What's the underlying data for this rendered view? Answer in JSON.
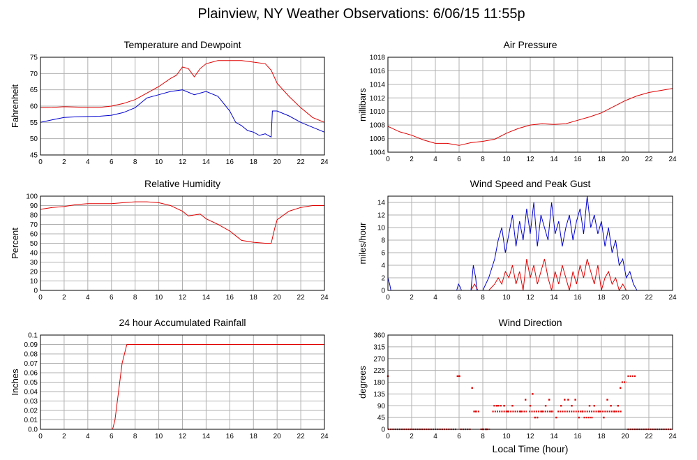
{
  "page": {
    "title": "Plainview, NY Weather Observations: 6/06/15 11:55p"
  },
  "shared_x": {
    "label": "Local Time (hour)",
    "range": [
      0,
      24
    ],
    "ticks": [
      0,
      2,
      4,
      6,
      8,
      10,
      12,
      14,
      16,
      18,
      20,
      22,
      24
    ]
  },
  "colors": {
    "red": "#e00000",
    "blue": "#0000d0",
    "grid": "#b0b0b0"
  },
  "chart_data": [
    {
      "type": "line",
      "title": "Temperature and Dewpoint",
      "ylabel": "Fahrenheit",
      "xlabel": "",
      "ylim": [
        45,
        75
      ],
      "yticks": [
        45,
        50,
        55,
        60,
        65,
        70,
        75
      ],
      "grid": true,
      "series": [
        {
          "color": "red",
          "x": [
            0,
            1,
            2,
            3,
            4,
            5,
            6,
            7,
            8,
            9,
            10,
            11,
            11.5,
            12,
            12.5,
            13,
            13.5,
            14,
            14.5,
            15,
            16,
            17,
            18,
            19,
            19.5,
            20,
            21,
            22,
            23,
            24
          ],
          "y": [
            59.5,
            59.6,
            59.8,
            59.7,
            59.6,
            59.6,
            60.0,
            60.8,
            62.0,
            64.0,
            66.0,
            68.5,
            69.5,
            72.0,
            71.5,
            69.0,
            71.5,
            73.0,
            73.5,
            74.0,
            74.0,
            74.0,
            73.5,
            73.0,
            71.0,
            67.0,
            63.0,
            59.5,
            56.5,
            55.0
          ]
        },
        {
          "color": "blue",
          "x": [
            0,
            1,
            2,
            3,
            4,
            5,
            6,
            7,
            8,
            9,
            10,
            11,
            12,
            13,
            14,
            15,
            16,
            16.5,
            17,
            17.5,
            18,
            18.5,
            19,
            19.5,
            19.6,
            20,
            21,
            22,
            23,
            24
          ],
          "y": [
            55.0,
            55.8,
            56.5,
            56.7,
            56.8,
            56.9,
            57.2,
            58.0,
            59.5,
            62.5,
            63.5,
            64.5,
            65.0,
            63.5,
            64.5,
            63.0,
            58.5,
            55.0,
            54.0,
            52.5,
            52.0,
            51.0,
            51.5,
            50.5,
            58.5,
            58.5,
            57.0,
            55.0,
            53.5,
            52.0
          ]
        }
      ]
    },
    {
      "type": "line",
      "title": "Air Pressure",
      "ylabel": "millibars",
      "xlabel": "",
      "ylim": [
        1004,
        1018
      ],
      "yticks": [
        1004,
        1006,
        1008,
        1010,
        1012,
        1014,
        1016,
        1018
      ],
      "grid": true,
      "series": [
        {
          "color": "red",
          "x": [
            0,
            1,
            2,
            3,
            4,
            5,
            6,
            7,
            8,
            9,
            10,
            11,
            12,
            13,
            14,
            15,
            16,
            17,
            18,
            19,
            20,
            21,
            22,
            23,
            24
          ],
          "y": [
            1007.8,
            1007.0,
            1006.5,
            1005.8,
            1005.3,
            1005.3,
            1005.0,
            1005.4,
            1005.6,
            1005.9,
            1006.8,
            1007.5,
            1008.0,
            1008.2,
            1008.1,
            1008.2,
            1008.7,
            1009.2,
            1009.8,
            1010.7,
            1011.6,
            1012.3,
            1012.8,
            1013.1,
            1013.4
          ]
        }
      ]
    },
    {
      "type": "line",
      "title": "Relative Humidity",
      "ylabel": "Percent",
      "xlabel": "",
      "ylim": [
        0,
        100
      ],
      "yticks": [
        0,
        10,
        20,
        30,
        40,
        50,
        60,
        70,
        80,
        90,
        100
      ],
      "grid": true,
      "series": [
        {
          "color": "red",
          "x": [
            0,
            1,
            2,
            3,
            4,
            5,
            6,
            7,
            8,
            9,
            10,
            11,
            12,
            12.5,
            13,
            13.5,
            14,
            14.5,
            15,
            16,
            16.5,
            17,
            18,
            19,
            19.5,
            19.8,
            20,
            21,
            22,
            23,
            24
          ],
          "y": [
            86,
            88,
            89,
            91,
            92,
            92,
            92,
            93,
            94,
            94,
            93,
            90,
            84,
            79,
            80,
            81,
            76,
            73,
            70,
            63,
            58,
            53,
            51,
            50,
            50,
            66,
            75,
            84,
            88,
            90,
            90
          ]
        }
      ]
    },
    {
      "type": "line",
      "title": "Wind Speed and Peak Gust",
      "ylabel": "miles/hour",
      "xlabel": "",
      "ylim": [
        0,
        15
      ],
      "yticks": [
        0,
        2,
        4,
        6,
        8,
        10,
        12,
        14
      ],
      "grid": true,
      "series": [
        {
          "color": "blue",
          "x": [
            0,
            0.15,
            0.25,
            5.8,
            5.95,
            6.1,
            6.2,
            7,
            7.2,
            7.4,
            7.5,
            8,
            8.5,
            9,
            9.3,
            9.6,
            9.9,
            10.2,
            10.5,
            10.8,
            11.1,
            11.4,
            11.7,
            12,
            12.3,
            12.6,
            12.9,
            13.2,
            13.5,
            13.8,
            14.1,
            14.4,
            14.7,
            15,
            15.3,
            15.6,
            15.9,
            16.2,
            16.5,
            16.8,
            17.1,
            17.4,
            17.7,
            18,
            18.3,
            18.6,
            18.9,
            19.2,
            19.5,
            19.8,
            20.1,
            20.4,
            20.7,
            21,
            24
          ],
          "y": [
            2,
            1,
            0,
            0,
            1,
            0.5,
            0,
            0,
            4,
            2,
            0,
            0,
            2,
            5,
            8,
            10,
            6,
            9,
            12,
            7,
            11,
            8,
            13,
            9,
            14,
            7,
            12,
            10,
            8,
            14,
            9,
            11,
            7,
            10,
            12,
            8,
            11,
            13,
            9,
            15,
            10,
            12,
            9,
            11,
            7,
            10,
            6,
            8,
            4,
            5,
            2,
            3,
            1,
            0,
            0
          ]
        },
        {
          "color": "red",
          "x": [
            0,
            7,
            7.3,
            7.6,
            8,
            8.5,
            9,
            9.3,
            9.6,
            9.9,
            10.2,
            10.5,
            10.8,
            11.1,
            11.4,
            11.7,
            12,
            12.3,
            12.6,
            12.9,
            13.2,
            13.5,
            13.8,
            14.1,
            14.4,
            14.7,
            15,
            15.3,
            15.6,
            15.9,
            16.2,
            16.5,
            16.8,
            17.1,
            17.4,
            17.7,
            18,
            18.3,
            18.6,
            18.9,
            19.2,
            19.5,
            19.8,
            20.1,
            24
          ],
          "y": [
            0,
            0,
            1,
            0,
            0,
            0,
            1,
            2,
            1,
            3,
            2,
            4,
            1,
            3,
            0,
            5,
            2,
            4,
            1,
            3,
            5,
            2,
            0,
            3,
            1,
            4,
            2,
            0,
            3,
            1,
            4,
            2,
            5,
            3,
            1,
            4,
            0,
            2,
            3,
            1,
            2,
            0,
            1,
            0,
            0
          ]
        }
      ]
    },
    {
      "type": "line",
      "title": "24 hour Accumulated Rainfall",
      "ylabel": "Inches",
      "xlabel": "",
      "ylim": [
        0,
        0.1
      ],
      "yticks": [
        0.0,
        0.01,
        0.02,
        0.03,
        0.04,
        0.05,
        0.06,
        0.07,
        0.08,
        0.09,
        0.1
      ],
      "ytick_labels": [
        "0.0",
        "0.01",
        "0.02",
        "0.03",
        "0.04",
        "0.05",
        "0.06",
        "0.07",
        "0.08",
        "0.09",
        "0.1"
      ],
      "grid": true,
      "series": [
        {
          "color": "red",
          "x": [
            0,
            6.1,
            6.3,
            6.5,
            6.7,
            6.9,
            7.1,
            7.3,
            24
          ],
          "y": [
            0,
            0,
            0.01,
            0.03,
            0.05,
            0.07,
            0.08,
            0.09,
            0.09
          ]
        }
      ]
    },
    {
      "type": "scatter",
      "title": "Wind Direction",
      "ylabel": "degrees",
      "xlabel": "Local Time (hour)",
      "ylim": [
        0,
        360
      ],
      "yticks": [
        0,
        45,
        90,
        135,
        180,
        225,
        270,
        315,
        360
      ],
      "grid": true,
      "series": [
        {
          "color": "red",
          "segments": [
            {
              "x0": 0,
              "x1": 5.8,
              "y": 0
            },
            {
              "x0": 6.1,
              "x1": 7.0,
              "y": 0
            },
            {
              "x0": 7.8,
              "x1": 8.6,
              "y": 0
            },
            {
              "x0": 20.2,
              "x1": 24,
              "y": 0
            },
            {
              "x0": 5.8,
              "x1": 6.1,
              "y": 203
            },
            {
              "x0": 20.2,
              "x1": 20.9,
              "y": 203
            },
            {
              "x0": 19.7,
              "x1": 20.1,
              "y": 180
            },
            {
              "x0": 7.2,
              "x1": 7.7,
              "y": 68
            },
            {
              "x0": 8.8,
              "x1": 11.7,
              "y": 68
            },
            {
              "x0": 11.9,
              "x1": 14.0,
              "y": 68
            },
            {
              "x0": 14.3,
              "x1": 19.7,
              "y": 68
            },
            {
              "x0": 8.9,
              "x1": 9.6,
              "y": 90
            },
            {
              "x0": 16.5,
              "x1": 17.3,
              "y": 45
            }
          ],
          "x": [
            0,
            6.0,
            7.1,
            7.4,
            8.0,
            8.3,
            9.2,
            9.8,
            10.1,
            10.5,
            11.2,
            11.6,
            12.0,
            12.2,
            12.4,
            12.6,
            13.0,
            13.3,
            13.6,
            13.8,
            14.2,
            14.6,
            14.9,
            15.2,
            15.5,
            15.8,
            16.1,
            16.4,
            17.0,
            17.4,
            17.8,
            18.2,
            18.5,
            18.8,
            19.1,
            19.4,
            19.6
          ],
          "y": [
            203,
            203,
            158,
            68,
            0,
            0,
            90,
            90,
            68,
            90,
            68,
            113,
            90,
            135,
            45,
            45,
            68,
            90,
            113,
            68,
            45,
            90,
            113,
            113,
            90,
            113,
            45,
            68,
            90,
            90,
            68,
            45,
            113,
            90,
            68,
            90,
            158
          ]
        }
      ]
    }
  ]
}
